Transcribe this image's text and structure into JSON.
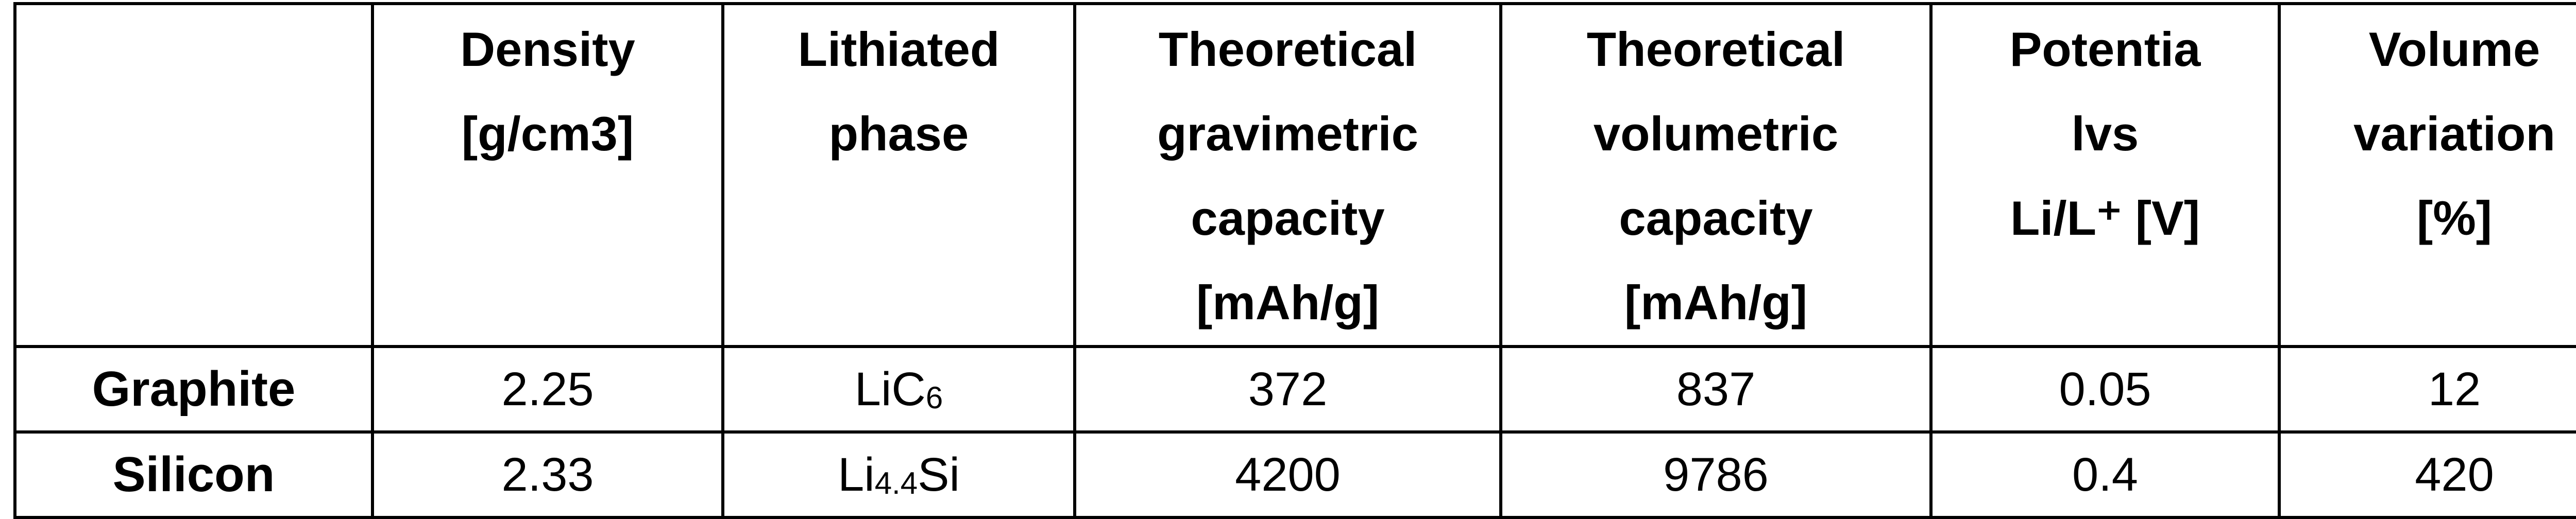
{
  "table": {
    "header": [
      [],
      [
        "Density",
        "[g/cm3]"
      ],
      [
        "Lithiated",
        "phase"
      ],
      [
        "Theoretical",
        "gravimetric",
        "capacity",
        "[mAh/g]"
      ],
      [
        "Theoretical",
        "volumetric",
        "capacity",
        "[mAh/g]"
      ],
      [
        "Potentia",
        "lvs",
        "Li/L⁺ [V]"
      ],
      [
        "Volume",
        "variation",
        "[%]"
      ]
    ],
    "rows": [
      [
        "Graphite",
        "2.25",
        [
          {
            "text": "LiC"
          },
          {
            "text": "6",
            "sub": true
          }
        ],
        "372",
        "837",
        "0.05",
        "12"
      ],
      [
        "Silicon",
        "2.33",
        [
          {
            "text": "Li"
          },
          {
            "text": "4.4",
            "sub": true
          },
          {
            "text": "Si"
          }
        ],
        "4200",
        "9786",
        "0.4",
        "420"
      ]
    ]
  }
}
